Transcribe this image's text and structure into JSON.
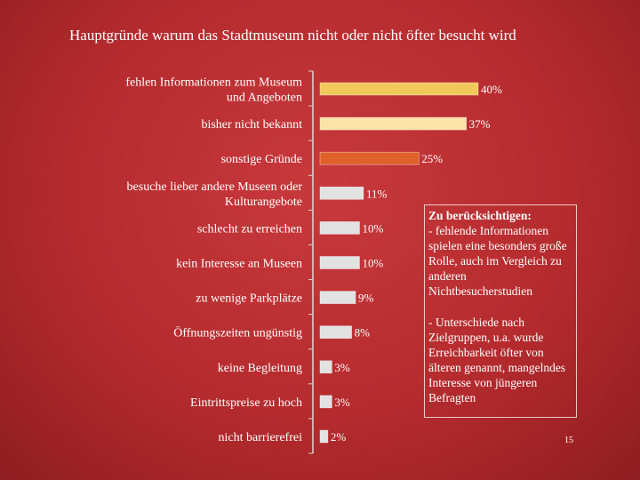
{
  "title": "Hauptgründe warum das Stadtmuseum nicht oder nicht öfter besucht wird",
  "note": {
    "heading": "Zu berücksichtigen:",
    "paragraph1": "- fehlende Informationen spielen eine besonders große Rolle, auch im Vergleich zu anderen Nichtbesucherstudien",
    "paragraph2": "- Unterschiede nach Zielgruppen, u.a. wurde Erreichbarkeit öfter von älteren genannt, mangelndes Interesse von jüngeren Befragten"
  },
  "page_number": "15",
  "colors": {
    "highlight_1": "#f2c85a",
    "highlight_2": "#fbe3a8",
    "highlight_3": "#e0602a",
    "default_bar": "#e2e2e2",
    "axis": "#d9d9d9"
  },
  "chart_data": {
    "type": "bar",
    "orientation": "horizontal",
    "categories": [
      [
        "fehlen Informationen zum Museum",
        "und Angeboten"
      ],
      [
        "bisher nicht bekannt"
      ],
      [
        "sonstige Gründe"
      ],
      [
        "besuche lieber andere Museen oder",
        "Kulturangebote"
      ],
      [
        "schlecht zu erreichen"
      ],
      [
        "kein Interesse an Museen"
      ],
      [
        "zu wenige Parkplätze"
      ],
      [
        "Öffnungszeiten ungünstig"
      ],
      [
        "keine Begleitung"
      ],
      [
        "Eintrittspreise zu hoch"
      ],
      [
        "nicht barrierefrei"
      ]
    ],
    "values": [
      40,
      37,
      25,
      11,
      10,
      10,
      9,
      8,
      3,
      3,
      2
    ],
    "value_labels": [
      "40%",
      "37%",
      "25%",
      "11%",
      "10%",
      "10%",
      "9%",
      "8%",
      "3%",
      "3%",
      "2%"
    ],
    "bar_colors": [
      "#f2c85a",
      "#fbe3a8",
      "#e0602a",
      "#e2e2e2",
      "#e2e2e2",
      "#e2e2e2",
      "#e2e2e2",
      "#e2e2e2",
      "#e2e2e2",
      "#e2e2e2",
      "#e2e2e2"
    ],
    "xlim": [
      0,
      42
    ],
    "grid": false,
    "legend": "none"
  }
}
